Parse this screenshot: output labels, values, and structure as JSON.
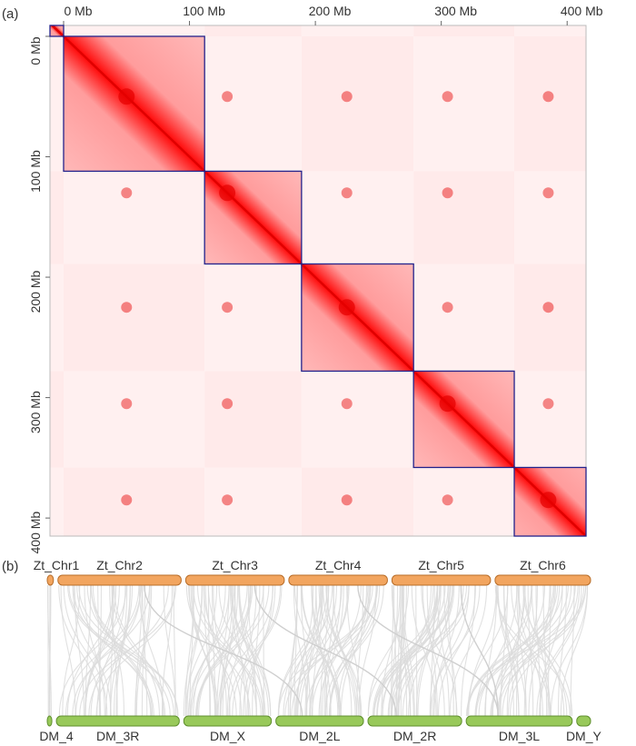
{
  "chart_data": [
    {
      "type": "heatmap",
      "panel_label": "(a)",
      "title": "",
      "xlabel": "",
      "ylabel": "",
      "axis_range_mb": [
        0,
        415
      ],
      "x_ticks": [
        {
          "value": 0,
          "label": "0 Mb"
        },
        {
          "value": 100,
          "label": "100 Mb"
        },
        {
          "value": 200,
          "label": "200 Mb"
        },
        {
          "value": 300,
          "label": "300 Mb"
        },
        {
          "value": 400,
          "label": "400 Mb"
        }
      ],
      "y_ticks": [
        {
          "value": 0,
          "label": "0 Mb"
        },
        {
          "value": 100,
          "label": "100 Mb"
        },
        {
          "value": 200,
          "label": "200 Mb"
        },
        {
          "value": 300,
          "label": "300 Mb"
        },
        {
          "value": 400,
          "label": "400 Mb"
        }
      ],
      "chromosome_blocks_mb": [
        {
          "start": -14,
          "end": 0
        },
        {
          "start": 0,
          "end": 112
        },
        {
          "start": 112,
          "end": 189
        },
        {
          "start": 189,
          "end": 278
        },
        {
          "start": 278,
          "end": 358
        },
        {
          "start": 358,
          "end": 436
        }
      ],
      "interchromosomal_signal_centers_mb": [
        {
          "x": 50,
          "y": 50
        },
        {
          "x": 130,
          "y": 130
        },
        {
          "x": 225,
          "y": 225
        },
        {
          "x": 305,
          "y": 305
        },
        {
          "x": 385,
          "y": 385
        }
      ],
      "colors": {
        "low": "#ffffff",
        "high": "#ff0000",
        "block_outline": "#22228b"
      }
    },
    {
      "type": "synteny",
      "panel_label": "(b)",
      "top_chromosomes": [
        {
          "label": "Zt_Chr1",
          "length": 4
        },
        {
          "label": "Zt_Chr2",
          "length": 80
        },
        {
          "label": "Zt_Chr3",
          "length": 64
        },
        {
          "label": "Zt_Chr4",
          "length": 64
        },
        {
          "label": "Zt_Chr5",
          "length": 64
        },
        {
          "label": "Zt_Chr6",
          "length": 62
        }
      ],
      "bottom_chromosomes": [
        {
          "label": "DM_4",
          "length": 3
        },
        {
          "label": "DM_3R",
          "length": 80
        },
        {
          "label": "DM_X",
          "length": 57
        },
        {
          "label": "DM_2L",
          "length": 57
        },
        {
          "label": "DM_2R",
          "length": 61
        },
        {
          "label": "DM_3L",
          "length": 69
        },
        {
          "label": "DM_Y",
          "length": 9
        }
      ],
      "synteny_pairs": [
        {
          "top": "Zt_Chr1",
          "bottom": "DM_4",
          "weight": 1
        },
        {
          "top": "Zt_Chr2",
          "bottom": "DM_3R",
          "weight": 10
        },
        {
          "top": "Zt_Chr3",
          "bottom": "DM_X",
          "weight": 10
        },
        {
          "top": "Zt_Chr4",
          "bottom": "DM_2L",
          "weight": 10
        },
        {
          "top": "Zt_Chr5",
          "bottom": "DM_2R",
          "weight": 10
        },
        {
          "top": "Zt_Chr6",
          "bottom": "DM_3L",
          "weight": 10
        }
      ],
      "colors": {
        "top": "#f2a55f",
        "top_edge": "#b86e2a",
        "bottom": "#98c95a",
        "bottom_edge": "#5f8f2e",
        "link": "#dcdcdc"
      }
    }
  ]
}
